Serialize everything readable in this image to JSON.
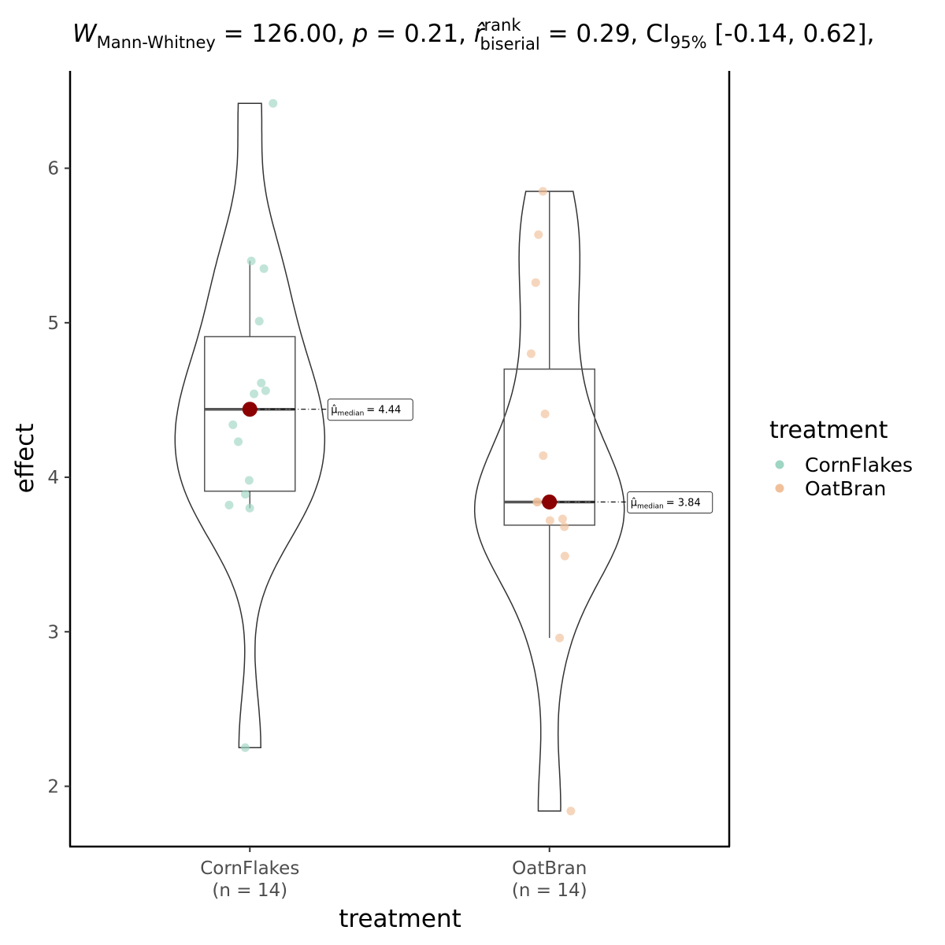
{
  "chart_data": {
    "type": "violin",
    "title_parts": [
      "W",
      "Mann-Whitney",
      " = 126.00, ",
      "p",
      " = 0.21, ",
      "r̂",
      "rank",
      "biserial",
      " = 0.29, CI",
      "95%",
      " [-0.14, 0.62],"
    ],
    "x_label": "treatment",
    "y_label": "effect",
    "categories": [
      "CornFlakes",
      "OatBran"
    ],
    "count_labels": [
      "(n = 14)",
      "(n = 14)"
    ],
    "series": [
      {
        "name": "CornFlakes",
        "color": "#9fd5c3",
        "values": [
          6.42,
          5.4,
          5.35,
          5.01,
          4.61,
          4.56,
          4.54,
          4.34,
          4.23,
          3.98,
          3.89,
          3.82,
          3.8,
          2.25
        ]
      },
      {
        "name": "OatBran",
        "color": "#f0c09a",
        "values": [
          5.85,
          5.57,
          5.26,
          4.8,
          4.41,
          4.14,
          3.84,
          3.84,
          3.73,
          3.72,
          3.68,
          3.49,
          2.96,
          1.84
        ]
      }
    ],
    "boxes": [
      {
        "whisker_low": 3.8,
        "q1": 3.91,
        "median": 4.44,
        "q3": 4.91,
        "whisker_high": 5.4
      },
      {
        "whisker_low": 2.96,
        "q1": 3.69,
        "median": 3.84,
        "q3": 4.7,
        "whisker_high": 5.85
      }
    ],
    "median_symbol": "μ̂",
    "median_subscript": "median",
    "median_labels": [
      "= 4.44",
      "= 3.84"
    ],
    "median_color": "#8b0000",
    "legend_title": "treatment",
    "legend_position": "right",
    "ylim": [
      1.61,
      6.63
    ],
    "yticks": [
      2,
      3,
      4,
      5,
      6
    ]
  }
}
